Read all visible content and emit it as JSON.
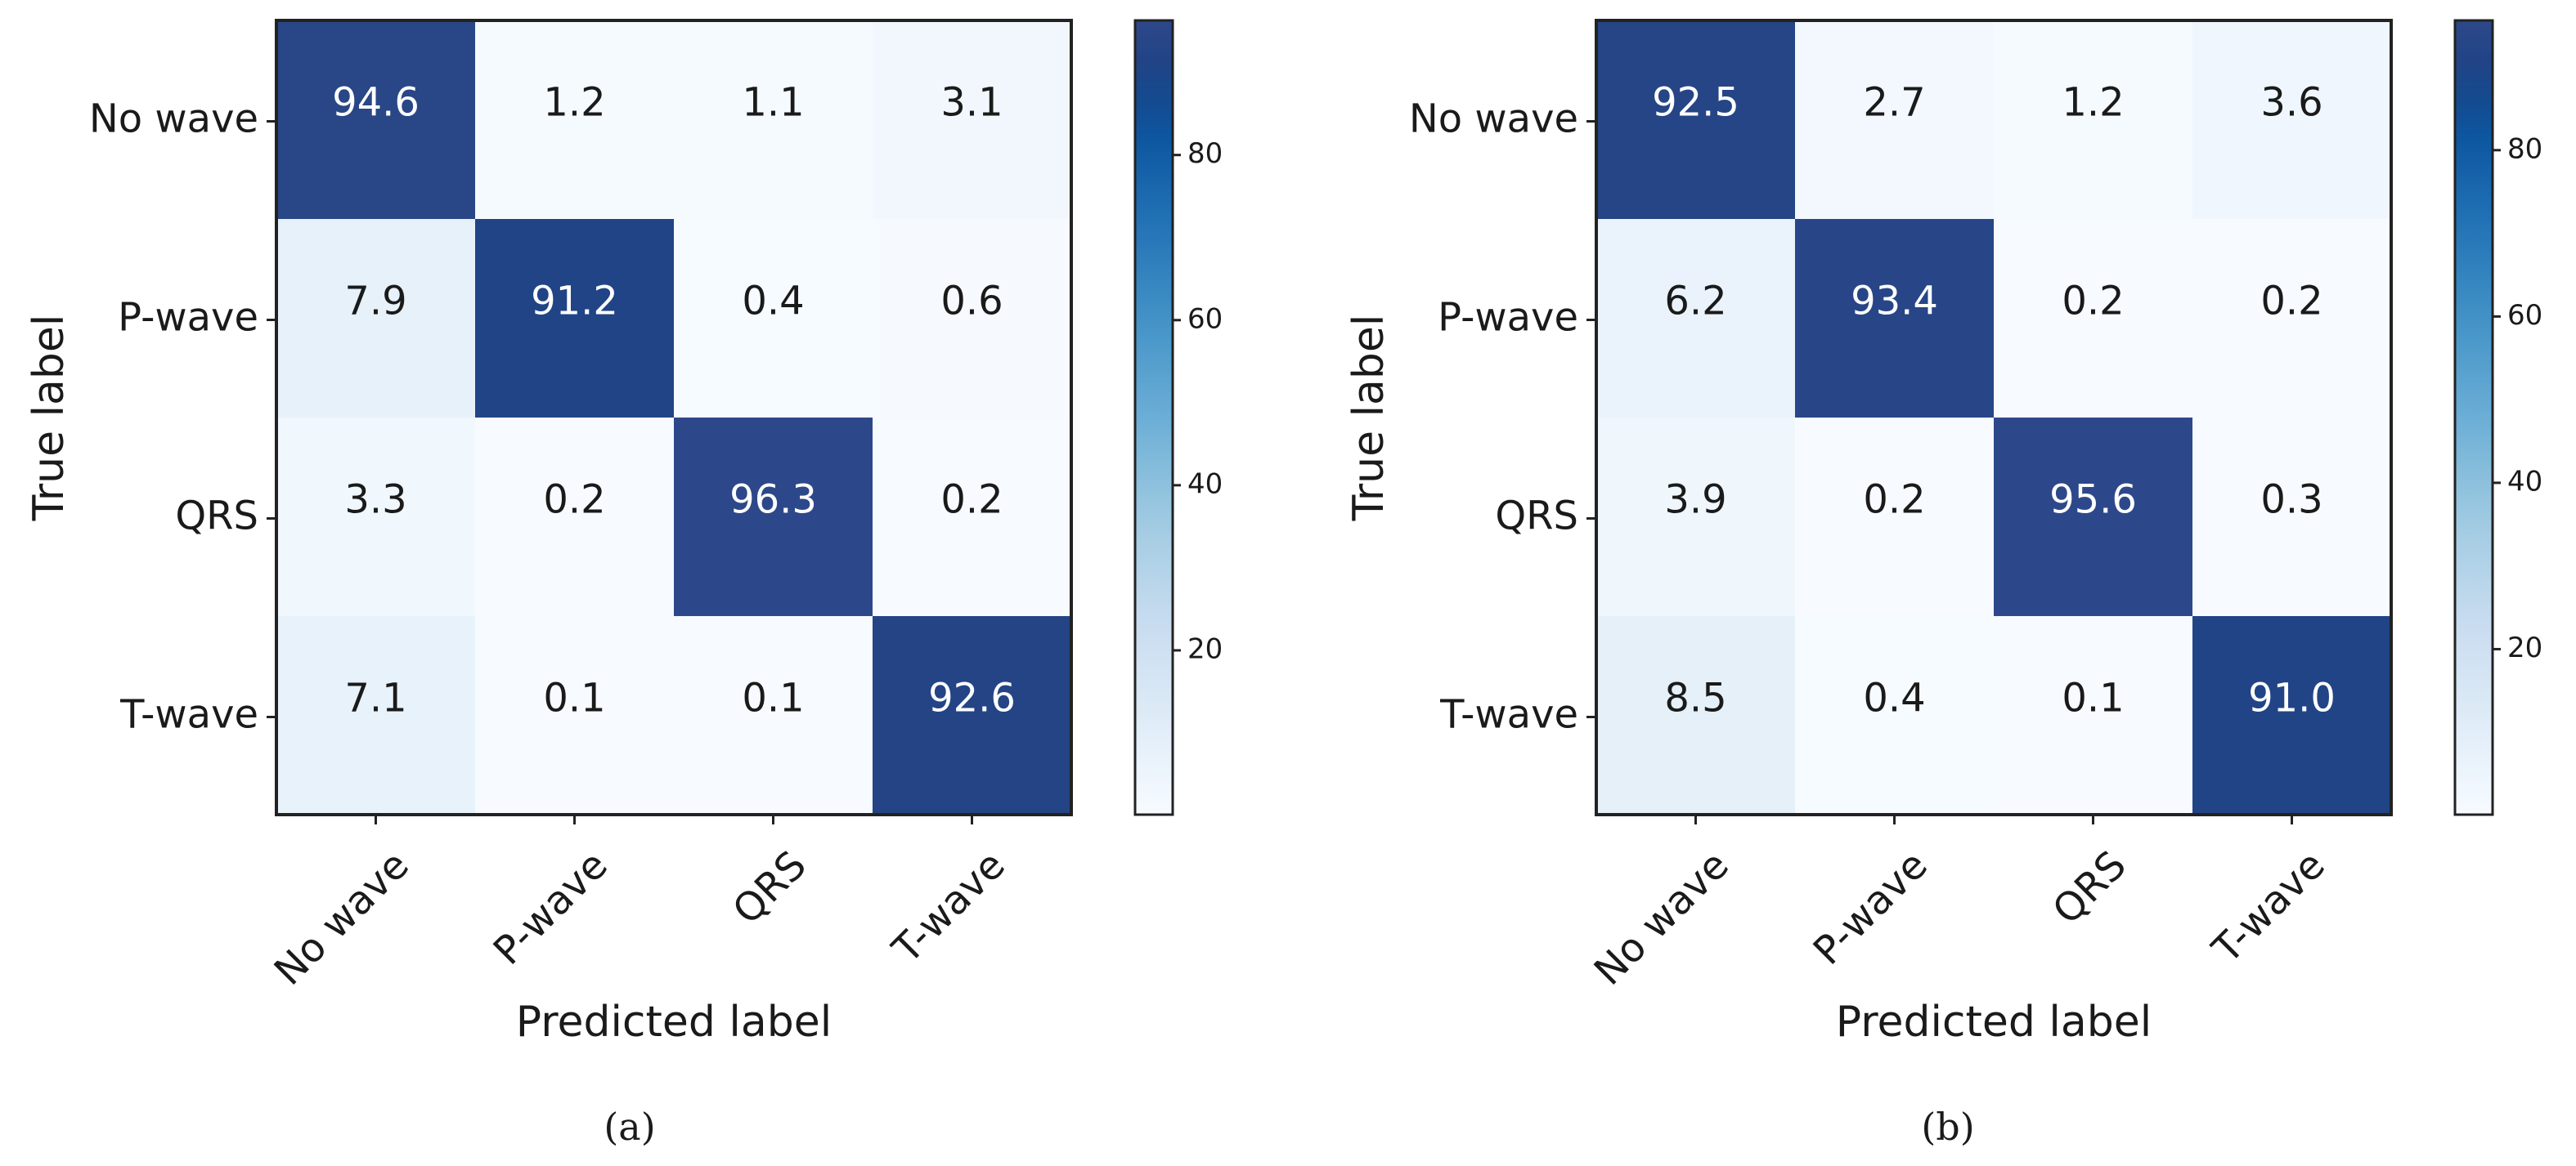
{
  "chart_data": [
    {
      "type": "heatmap",
      "caption": "(a)",
      "xlabel": "Predicted label",
      "ylabel": "True label",
      "x_categories": [
        "No wave",
        "P-wave",
        "QRS",
        "T-wave"
      ],
      "y_categories": [
        "No wave",
        "P-wave",
        "QRS",
        "T-wave"
      ],
      "values": [
        [
          94.6,
          1.2,
          1.1,
          3.1
        ],
        [
          7.9,
          91.2,
          0.4,
          0.6
        ],
        [
          3.3,
          0.2,
          96.3,
          0.2
        ],
        [
          7.1,
          0.1,
          0.1,
          92.6
        ]
      ],
      "value_labels": [
        [
          "94.6",
          "1.2",
          "1.1",
          "3.1"
        ],
        [
          "7.9",
          "91.2",
          "0.4",
          "0.6"
        ],
        [
          "3.3",
          "0.2",
          "96.3",
          "0.2"
        ],
        [
          "7.1",
          "0.1",
          "0.1",
          "92.6"
        ]
      ],
      "colorbar": {
        "ticks": [
          20,
          40,
          60,
          80
        ],
        "range": [
          0.1,
          96.3
        ],
        "colormap": "Blues"
      }
    },
    {
      "type": "heatmap",
      "caption": "(b)",
      "xlabel": "Predicted label",
      "ylabel": "True label",
      "x_categories": [
        "No wave",
        "P-wave",
        "QRS",
        "T-wave"
      ],
      "y_categories": [
        "No wave",
        "P-wave",
        "QRS",
        "T-wave"
      ],
      "values": [
        [
          92.5,
          2.7,
          1.2,
          3.6
        ],
        [
          6.2,
          93.4,
          0.2,
          0.2
        ],
        [
          3.9,
          0.2,
          95.6,
          0.3
        ],
        [
          8.5,
          0.4,
          0.1,
          91.0
        ]
      ],
      "value_labels": [
        [
          "92.5",
          "2.7",
          "1.2",
          "3.6"
        ],
        [
          "6.2",
          "93.4",
          "0.2",
          "0.2"
        ],
        [
          "3.9",
          "0.2",
          "95.6",
          "0.3"
        ],
        [
          "8.5",
          "0.4",
          "0.1",
          "91.0"
        ]
      ],
      "colorbar": {
        "ticks": [
          20,
          40,
          60,
          80
        ],
        "range": [
          0.1,
          95.6
        ],
        "colormap": "Blues"
      }
    }
  ]
}
